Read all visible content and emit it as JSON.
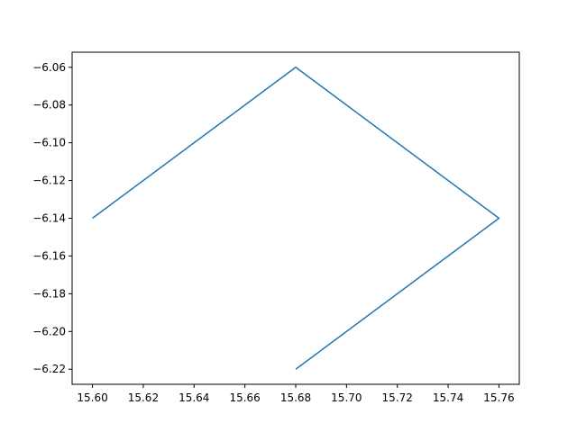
{
  "chart_data": {
    "type": "line",
    "title": "",
    "xlabel": "",
    "ylabel": "",
    "xlim": [
      15.592,
      15.768
    ],
    "ylim": [
      -6.228,
      -6.052
    ],
    "grid": false,
    "series": [
      {
        "color": "#1f77b4",
        "x": [
          15.6,
          15.68,
          15.76,
          15.68
        ],
        "y": [
          -6.14,
          -6.06,
          -6.14,
          -6.22
        ]
      }
    ],
    "xticks": [
      15.6,
      15.62,
      15.64,
      15.66,
      15.68,
      15.7,
      15.72,
      15.74,
      15.76
    ],
    "xtick_labels": [
      "15.60",
      "15.62",
      "15.64",
      "15.66",
      "15.68",
      "15.70",
      "15.72",
      "15.74",
      "15.76"
    ],
    "yticks": [
      -6.06,
      -6.08,
      -6.1,
      -6.12,
      -6.14,
      -6.16,
      -6.18,
      -6.2,
      -6.22
    ],
    "ytick_labels": [
      "−6.06",
      "−6.08",
      "−6.10",
      "−6.12",
      "−6.14",
      "−6.16",
      "−6.18",
      "−6.20",
      "−6.22"
    ]
  }
}
